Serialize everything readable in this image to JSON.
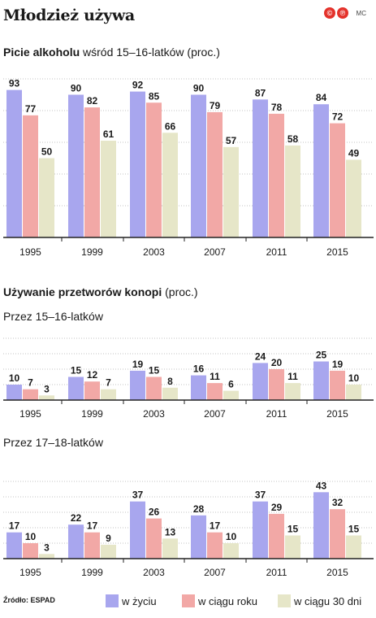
{
  "title": "Młodzież używa",
  "logo": {
    "letters": [
      "©",
      "℗"
    ],
    "author": "MC"
  },
  "colors": {
    "zyciu": "#a8a6ee",
    "roku": "#f2a8a6",
    "dni": "#e6e6c8",
    "axis": "#222222",
    "grid": "#888888"
  },
  "sections": {
    "alcohol_bold": "Picie alkoholu",
    "alcohol_rest": " wśród 15–16-latków (proc.)",
    "cannabis_bold": "Używanie przetworów konopi",
    "cannabis_rest": " (proc.)",
    "sub1": "Przez 15–16-latków",
    "sub2": "Przez 17–18-latków"
  },
  "legend": {
    "source": "Źródło: ESPAD",
    "items": [
      "w życiu",
      "w ciągu roku",
      "w ciągu 30 dni"
    ]
  },
  "chart_data": [
    {
      "type": "bar",
      "title": "Picie alkoholu wśród 15–16-latków (proc.)",
      "categories": [
        "1995",
        "1999",
        "2003",
        "2007",
        "2011",
        "2015"
      ],
      "series": [
        {
          "name": "w życiu",
          "values": [
            93,
            90,
            92,
            90,
            87,
            84
          ]
        },
        {
          "name": "w ciągu roku",
          "values": [
            77,
            82,
            85,
            79,
            78,
            72
          ]
        },
        {
          "name": "w ciągu 30 dni",
          "values": [
            50,
            61,
            66,
            57,
            58,
            49
          ]
        }
      ],
      "ylim": [
        0,
        100
      ],
      "grid": true
    },
    {
      "type": "bar",
      "title": "Przez 15–16-latków",
      "categories": [
        "1995",
        "1999",
        "2003",
        "2007",
        "2011",
        "2015"
      ],
      "series": [
        {
          "name": "w życiu",
          "values": [
            10,
            15,
            19,
            16,
            24,
            25
          ]
        },
        {
          "name": "w ciągu roku",
          "values": [
            7,
            12,
            15,
            11,
            20,
            19
          ]
        },
        {
          "name": "w ciągu 30 dni",
          "values": [
            3,
            7,
            8,
            6,
            11,
            10
          ]
        }
      ],
      "ylim": [
        0,
        50
      ],
      "grid": true
    },
    {
      "type": "bar",
      "title": "Przez 17–18-latków",
      "categories": [
        "1995",
        "1999",
        "2003",
        "2007",
        "2011",
        "2015"
      ],
      "series": [
        {
          "name": "w życiu",
          "values": [
            17,
            22,
            37,
            28,
            37,
            43
          ]
        },
        {
          "name": "w ciągu roku",
          "values": [
            10,
            17,
            26,
            17,
            29,
            32
          ]
        },
        {
          "name": "w ciągu 30 dni",
          "values": [
            3,
            9,
            13,
            10,
            15,
            15
          ]
        }
      ],
      "ylim": [
        0,
        50
      ],
      "grid": true
    }
  ]
}
